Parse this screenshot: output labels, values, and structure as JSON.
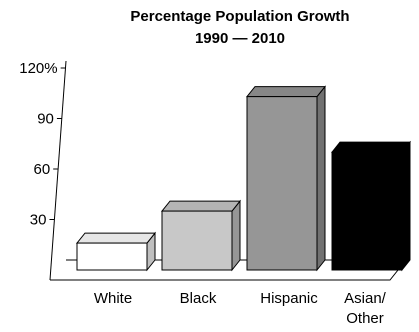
{
  "chart_data": {
    "type": "bar",
    "title": "Percentage Population Growth",
    "subtitle": "1990 — 2010",
    "categories": [
      "White",
      "Black",
      "Hispanic",
      "Asian/\nOther"
    ],
    "values": [
      16,
      35,
      103,
      70
    ],
    "yticks": [
      "30",
      "60",
      "90",
      "120%"
    ],
    "ylim": [
      0,
      120
    ],
    "colors": [
      "#ffffff",
      "#c8c8c8",
      "#969696",
      "#000000"
    ],
    "grid": false,
    "legend": "none",
    "xlabel": "",
    "ylabel": ""
  }
}
